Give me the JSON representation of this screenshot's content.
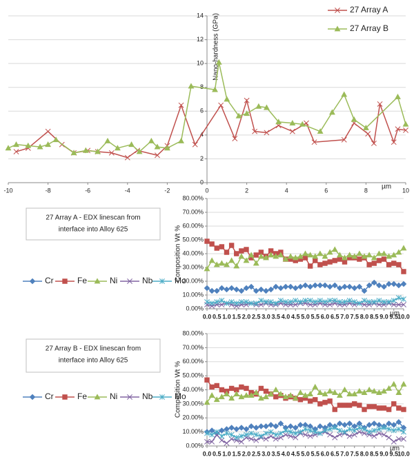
{
  "chart_data": [
    {
      "type": "line",
      "ylabel": "Nano-hardness (GPa)",
      "xlabel": "µm",
      "legend": "top-right",
      "grid": true,
      "xlim": [
        -10,
        10
      ],
      "xticks": [
        -10,
        -8,
        -6,
        -4,
        -2,
        0,
        2,
        4,
        6,
        8,
        10
      ],
      "ylim": [
        0,
        14
      ],
      "yticks": [
        0,
        2,
        4,
        6,
        8,
        10,
        12,
        14
      ],
      "series": [
        {
          "name": "27 Array A",
          "color": "#c0504d",
          "marker": "x",
          "x": [
            -9.6,
            -9.0,
            -8.0,
            -7.3,
            -6.7,
            -6.0,
            -5.5,
            -4.8,
            -4.0,
            -3.5,
            -2.5,
            -2.0,
            -1.3,
            -0.6,
            0.7,
            1.4,
            2.0,
            2.4,
            3.0,
            3.6,
            4.3,
            5.0,
            5.4,
            6.9,
            7.4,
            8.1,
            8.4,
            8.7,
            9.4,
            9.6,
            10.0
          ],
          "values": [
            2.6,
            2.9,
            4.3,
            3.2,
            2.5,
            2.7,
            2.6,
            2.5,
            2.1,
            2.7,
            2.3,
            3.1,
            6.5,
            3.2,
            6.5,
            3.7,
            6.9,
            4.3,
            4.2,
            4.8,
            4.3,
            5.0,
            3.4,
            3.6,
            5.0,
            4.1,
            3.3,
            6.6,
            3.4,
            4.5,
            4.4
          ]
        },
        {
          "name": "27 Array B",
          "color": "#9bbb59",
          "marker": "triangle",
          "x": [
            -10.0,
            -9.6,
            -9.0,
            -8.4,
            -8.0,
            -7.6,
            -6.7,
            -6.1,
            -5.5,
            -5.0,
            -4.5,
            -3.8,
            -3.4,
            -2.8,
            -2.5,
            -2.0,
            -1.3,
            -0.8,
            0.4,
            0.6,
            1.0,
            1.6,
            2.0,
            2.6,
            3.0,
            3.6,
            4.3,
            4.8,
            5.7,
            6.3,
            6.9,
            7.4,
            8.0,
            9.6,
            10.0
          ],
          "values": [
            2.9,
            3.2,
            3.1,
            3.0,
            3.2,
            3.6,
            2.5,
            2.7,
            2.6,
            3.5,
            2.9,
            3.2,
            2.6,
            3.5,
            3.0,
            2.9,
            3.5,
            8.1,
            7.8,
            10.1,
            7.0,
            5.6,
            5.8,
            6.4,
            6.3,
            5.1,
            5.0,
            4.9,
            4.3,
            5.9,
            7.4,
            5.3,
            4.6,
            7.2,
            4.9
          ]
        }
      ]
    },
    {
      "type": "line",
      "note": [
        "27 Array A - EDX linescan  from",
        "interface into Alloy 625"
      ],
      "ylabel": "Composition Wt %",
      "xlabel": "µm",
      "legend": "left",
      "grid": true,
      "xlim": [
        0,
        10
      ],
      "xticks": [
        {
          "value": 0,
          "label": "0.0"
        },
        {
          "value": 0.5,
          "label": "0.5"
        },
        {
          "value": 1,
          "label": "1.0"
        },
        {
          "value": 1.5,
          "label": "1.5"
        },
        {
          "value": 2,
          "label": "2.0"
        },
        {
          "value": 2.5,
          "label": "2.5"
        },
        {
          "value": 3,
          "label": "3.0"
        },
        {
          "value": 3.5,
          "label": "3.5"
        },
        {
          "value": 4,
          "label": "4.0"
        },
        {
          "value": 4.5,
          "label": "4.5"
        },
        {
          "value": 5,
          "label": "5.0"
        },
        {
          "value": 5.5,
          "label": "5.5"
        },
        {
          "value": 6,
          "label": "6.0"
        },
        {
          "value": 6.5,
          "label": "6.5"
        },
        {
          "value": 7,
          "label": "7.0"
        },
        {
          "value": 7.5,
          "label": "7.5"
        },
        {
          "value": 8,
          "label": "8.0"
        },
        {
          "value": 8.5,
          "label": "8.5"
        },
        {
          "value": 9,
          "label": "9.0"
        },
        {
          "value": 9.5,
          "label": "9.5"
        },
        {
          "value": 10,
          "label": "10.0"
        }
      ],
      "ylim": [
        0,
        80
      ],
      "yticks": [
        {
          "value": 0,
          "label": "0.00%"
        },
        {
          "value": 10,
          "label": "10.00%"
        },
        {
          "value": 20,
          "label": "20.00%"
        },
        {
          "value": 30,
          "label": "30.00%"
        },
        {
          "value": 40,
          "label": "40.00%"
        },
        {
          "value": 50,
          "label": "50.00%"
        },
        {
          "value": 60,
          "label": "60.00%"
        },
        {
          "value": 70,
          "label": "70.00%"
        },
        {
          "value": 80,
          "label": "80.00%"
        }
      ],
      "x": [
        0,
        0.25,
        0.5,
        0.75,
        1,
        1.25,
        1.5,
        1.75,
        2,
        2.25,
        2.5,
        2.75,
        3,
        3.25,
        3.5,
        3.75,
        4,
        4.25,
        4.5,
        4.75,
        5,
        5.25,
        5.5,
        5.75,
        6,
        6.25,
        6.5,
        6.75,
        7,
        7.25,
        7.5,
        7.75,
        8,
        8.25,
        8.5,
        8.75,
        9,
        9.25,
        9.5,
        9.75,
        10
      ],
      "series": [
        {
          "name": "Cr",
          "color": "#4f81bd",
          "marker": "diamond",
          "values": [
            15,
            13,
            13,
            15,
            14,
            15,
            14,
            13,
            15,
            16,
            13,
            14,
            13,
            14,
            16,
            15,
            16,
            16,
            15,
            16,
            17,
            16,
            17,
            17,
            17,
            16,
            17,
            15,
            16,
            16,
            15,
            16,
            13,
            17,
            19,
            17,
            16,
            18,
            18,
            17,
            18
          ]
        },
        {
          "name": "Fe",
          "color": "#c0504d",
          "marker": "square",
          "values": [
            49,
            47,
            44,
            45,
            41,
            46,
            40,
            42,
            43,
            37,
            39,
            41,
            38,
            42,
            40,
            41,
            36,
            36,
            35,
            36,
            37,
            31,
            35,
            32,
            33,
            34,
            35,
            36,
            34,
            37,
            37,
            36,
            37,
            32,
            33,
            35,
            36,
            32,
            33,
            32,
            27
          ]
        },
        {
          "name": "Ni",
          "color": "#9bbb59",
          "marker": "triangle",
          "values": [
            29,
            35,
            32,
            33,
            32,
            35,
            31,
            38,
            35,
            39,
            33,
            38,
            37,
            39,
            38,
            39,
            36,
            38,
            37,
            38,
            40,
            39,
            38,
            40,
            38,
            41,
            43,
            39,
            37,
            39,
            38,
            40,
            38,
            39,
            37,
            40,
            40,
            38,
            39,
            41,
            44
          ]
        },
        {
          "name": "Nb",
          "color": "#8064a2",
          "marker": "x",
          "values": [
            3,
            2,
            3,
            3,
            4,
            3,
            2,
            3,
            3,
            4,
            3,
            3,
            4,
            3,
            3,
            4,
            3,
            3,
            3,
            4,
            4,
            3,
            3,
            4,
            3,
            3,
            4,
            3,
            3,
            4,
            3,
            4,
            3,
            3,
            4,
            3,
            3,
            4,
            3,
            3,
            3
          ]
        },
        {
          "name": "Mo",
          "color": "#4bacc6",
          "marker": "star",
          "values": [
            5,
            4,
            5,
            6,
            4,
            5,
            4,
            5,
            5,
            4,
            4,
            6,
            5,
            5,
            4,
            6,
            5,
            5,
            6,
            5,
            6,
            6,
            5,
            6,
            5,
            6,
            6,
            5,
            5,
            6,
            5,
            4,
            6,
            5,
            5,
            6,
            5,
            5,
            6,
            8,
            7
          ]
        }
      ]
    },
    {
      "type": "line",
      "note": [
        "27 Array B - EDX linescan  from",
        "interface into Alloy 625"
      ],
      "ylabel": "Composition Wt %",
      "xlabel": "µm",
      "legend": "left",
      "grid": true,
      "xlim": [
        0,
        10
      ],
      "xticks": [
        {
          "value": 0,
          "label": "0.0"
        },
        {
          "value": 0.5,
          "label": "0.5"
        },
        {
          "value": 1,
          "label": "1.0"
        },
        {
          "value": 1.5,
          "label": "1.5"
        },
        {
          "value": 2,
          "label": "2.0"
        },
        {
          "value": 2.5,
          "label": "2.5"
        },
        {
          "value": 3,
          "label": "3.0"
        },
        {
          "value": 3.5,
          "label": "3.5"
        },
        {
          "value": 4,
          "label": "4.0"
        },
        {
          "value": 4.5,
          "label": "4.5"
        },
        {
          "value": 5,
          "label": "5.0"
        },
        {
          "value": 5.5,
          "label": "5.5"
        },
        {
          "value": 6,
          "label": "6.0"
        },
        {
          "value": 6.5,
          "label": "6.5"
        },
        {
          "value": 7,
          "label": "7.0"
        },
        {
          "value": 7.5,
          "label": "7.5"
        },
        {
          "value": 8,
          "label": "8.0"
        },
        {
          "value": 8.5,
          "label": "8.5"
        },
        {
          "value": 9,
          "label": "9.0"
        },
        {
          "value": 9.5,
          "label": "9.5"
        },
        {
          "value": 10,
          "label": "10.0"
        }
      ],
      "ylim": [
        0,
        80
      ],
      "yticks": [
        {
          "value": 0,
          "label": "0.00%"
        },
        {
          "value": 10,
          "label": "10.00%"
        },
        {
          "value": 20,
          "label": "20.00%"
        },
        {
          "value": 30,
          "label": "30.00%"
        },
        {
          "value": 40,
          "label": "40.00%"
        },
        {
          "value": 50,
          "label": "50.00%"
        },
        {
          "value": 60,
          "label": "60.00%"
        },
        {
          "value": 70,
          "label": "70.00%"
        },
        {
          "value": 80,
          "label": "80.00%"
        }
      ],
      "x": [
        0,
        0.25,
        0.5,
        0.75,
        1,
        1.25,
        1.5,
        1.75,
        2,
        2.25,
        2.5,
        2.75,
        3,
        3.25,
        3.5,
        3.75,
        4,
        4.25,
        4.5,
        4.75,
        5,
        5.25,
        5.5,
        5.75,
        6,
        6.25,
        6.5,
        6.75,
        7,
        7.25,
        7.5,
        7.75,
        8,
        8.25,
        8.5,
        8.75,
        9,
        9.25,
        9.5,
        9.75,
        10
      ],
      "series": [
        {
          "name": "Cr",
          "color": "#4f81bd",
          "marker": "diamond",
          "values": [
            10,
            11,
            9,
            11,
            12,
            13,
            12,
            13,
            12,
            14,
            13,
            14,
            14,
            15,
            14,
            16,
            13,
            14,
            13,
            15,
            15,
            14,
            12,
            14,
            13,
            15,
            14,
            16,
            15,
            16,
            14,
            16,
            13,
            15,
            16,
            15,
            14,
            16,
            15,
            17,
            13
          ]
        },
        {
          "name": "Fe",
          "color": "#c0504d",
          "marker": "square",
          "values": [
            47,
            42,
            43,
            40,
            39,
            41,
            40,
            42,
            41,
            38,
            37,
            41,
            39,
            37,
            35,
            36,
            34,
            35,
            34,
            33,
            34,
            32,
            33,
            30,
            31,
            32,
            26,
            29,
            29,
            29,
            30,
            29,
            26,
            28,
            28,
            27,
            27,
            26,
            30,
            27,
            26
          ]
        },
        {
          "name": "Ni",
          "color": "#9bbb59",
          "marker": "triangle",
          "values": [
            31,
            36,
            33,
            35,
            37,
            34,
            37,
            35,
            36,
            36,
            38,
            34,
            35,
            37,
            40,
            37,
            35,
            36,
            34,
            38,
            36,
            37,
            42,
            38,
            37,
            39,
            38,
            36,
            40,
            37,
            37,
            39,
            38,
            40,
            39,
            38,
            39,
            41,
            44,
            38,
            44
          ]
        },
        {
          "name": "Nb",
          "color": "#8064a2",
          "marker": "x",
          "values": [
            3,
            3,
            8,
            4,
            2,
            5,
            4,
            3,
            6,
            5,
            4,
            6,
            5,
            7,
            5,
            6,
            8,
            7,
            6,
            9,
            8,
            7,
            8,
            9,
            10,
            8,
            6,
            8,
            9,
            7,
            8,
            10,
            9,
            8,
            7,
            9,
            8,
            6,
            3,
            5,
            5
          ]
        },
        {
          "name": "Mo",
          "color": "#4bacc6",
          "marker": "star",
          "values": [
            9,
            8,
            10,
            7,
            9,
            8,
            6,
            7,
            8,
            9,
            8,
            7,
            9,
            10,
            8,
            9,
            11,
            10,
            9,
            10,
            12,
            11,
            10,
            9,
            11,
            12,
            13,
            11,
            10,
            12,
            11,
            13,
            12,
            10,
            11,
            12,
            13,
            12,
            11,
            12,
            10
          ]
        }
      ]
    }
  ]
}
